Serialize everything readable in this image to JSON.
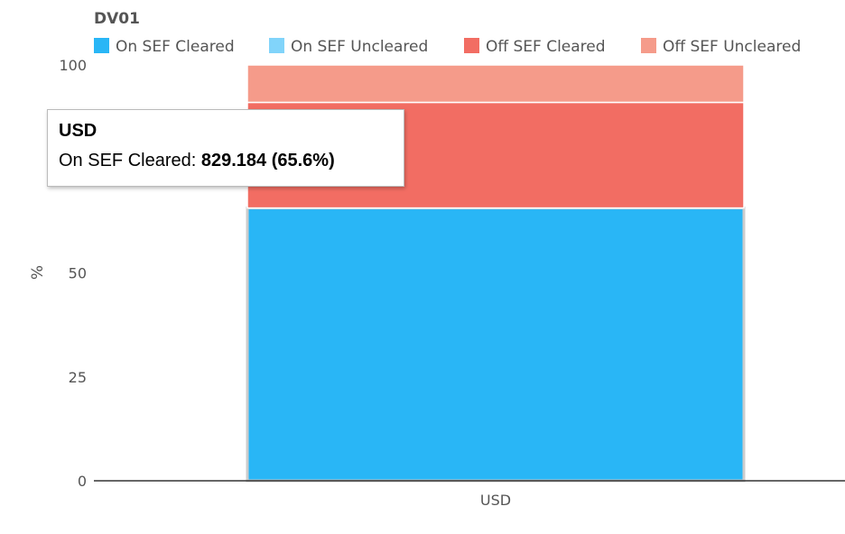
{
  "chart_data": {
    "type": "bar",
    "stacked": true,
    "title": "DV01",
    "xlabel": "",
    "ylabel": "%",
    "categories": [
      "USD"
    ],
    "ylim": [
      0,
      100
    ],
    "yticks": [
      0,
      25,
      50,
      100
    ],
    "legend_position": "top",
    "series": [
      {
        "name": "On SEF Cleared",
        "color": "#29b6f6",
        "values": [
          65.6
        ]
      },
      {
        "name": "On SEF Uncleared",
        "color": "#81d4fa",
        "values": [
          0
        ]
      },
      {
        "name": "Off SEF Cleared",
        "color": "#f26d63",
        "values": [
          25.4
        ]
      },
      {
        "name": "Off SEF Uncleared",
        "color": "#f59b8a",
        "values": [
          9.0
        ]
      }
    ]
  },
  "tooltip": {
    "category": "USD",
    "series_label": "On SEF Cleared:",
    "value_text": "829.184 (65.6%)"
  }
}
